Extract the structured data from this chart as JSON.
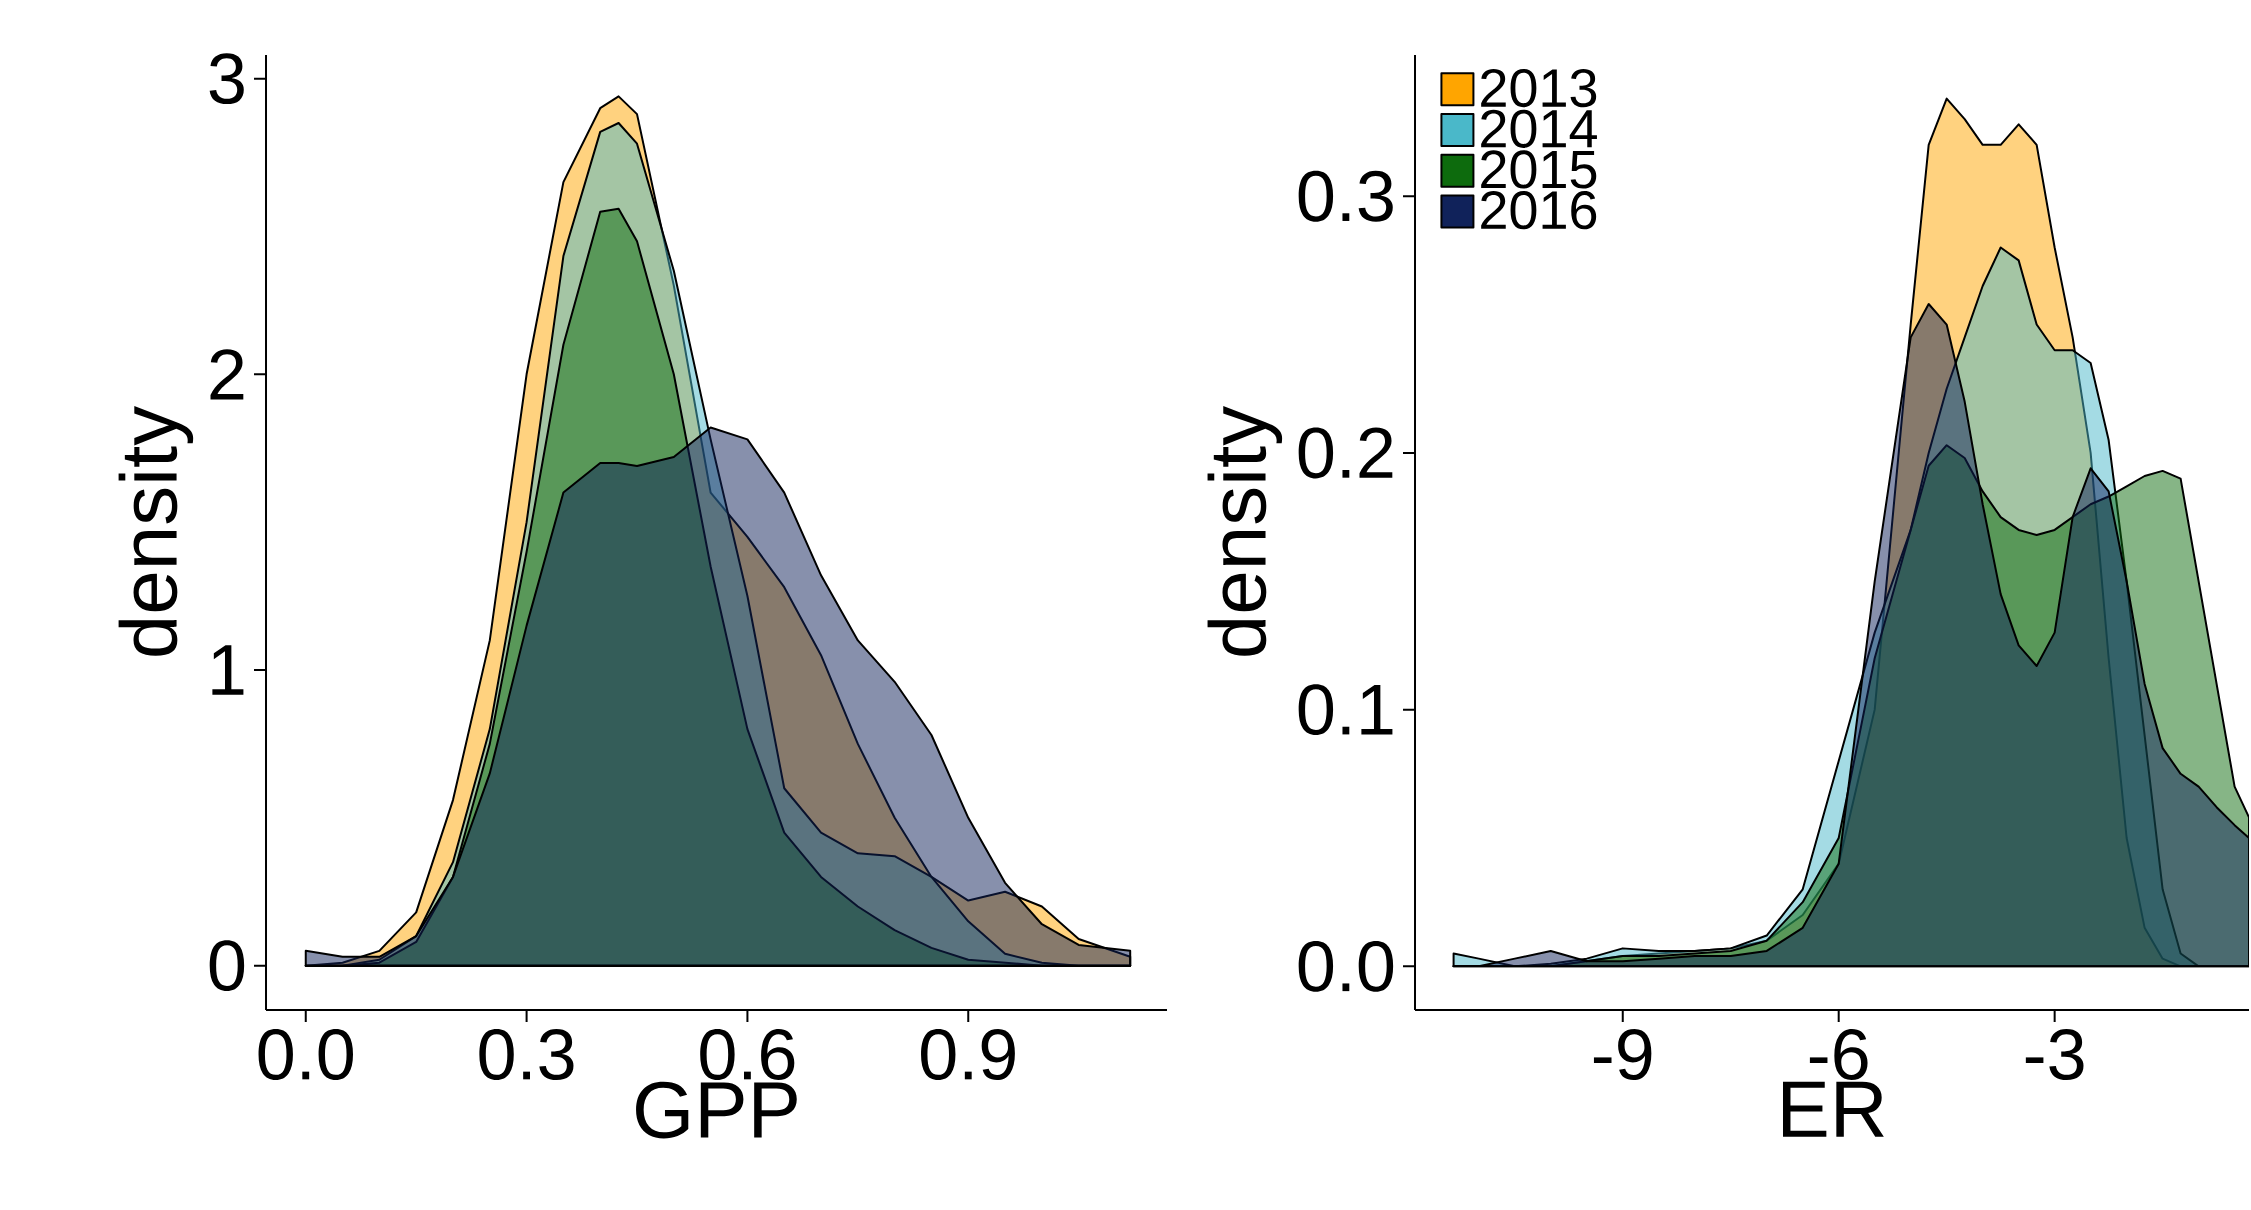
{
  "chart_data": [
    {
      "type": "area",
      "xlabel": "GPP",
      "ylabel": "density",
      "xlim": [
        -0.054,
        1.17
      ],
      "ylim": [
        -0.15,
        3.08
      ],
      "xticks": [
        {
          "value": 0,
          "label": "0.0"
        },
        0.3,
        0.6,
        0.9
      ],
      "yticks": [
        0,
        1,
        2,
        3
      ],
      "x": [
        0,
        0.05,
        0.1,
        0.15,
        0.2,
        0.25,
        0.3,
        0.35,
        0.4,
        0.425,
        0.45,
        0.5,
        0.55,
        0.6,
        0.65,
        0.7,
        0.75,
        0.8,
        0.85,
        0.9,
        0.95,
        1.0,
        1.05,
        1.12
      ],
      "series": [
        {
          "color": "#ffa500",
          "values": [
            0,
            0.01,
            0.05,
            0.18,
            0.56,
            1.1,
            2.0,
            2.65,
            2.9,
            2.94,
            2.88,
            2.3,
            1.6,
            1.45,
            1.28,
            1.05,
            0.75,
            0.5,
            0.3,
            0.22,
            0.25,
            0.2,
            0.09,
            0.03
          ]
        },
        {
          "color": "#4ab8c9",
          "values": [
            0,
            0,
            0.02,
            0.1,
            0.35,
            0.8,
            1.5,
            2.4,
            2.82,
            2.85,
            2.78,
            2.35,
            1.78,
            1.25,
            0.6,
            0.45,
            0.38,
            0.37,
            0.3,
            0.15,
            0.04,
            0.01,
            0,
            0
          ]
        },
        {
          "color": "#0d6b0d",
          "values": [
            0,
            0,
            0.01,
            0.08,
            0.3,
            0.75,
            1.4,
            2.1,
            2.55,
            2.56,
            2.45,
            2.0,
            1.35,
            0.8,
            0.45,
            0.3,
            0.2,
            0.12,
            0.06,
            0.02,
            0.01,
            0,
            0,
            0
          ]
        },
        {
          "color": "#10225a",
          "values": [
            0.05,
            0.03,
            0.03,
            0.1,
            0.3,
            0.65,
            1.15,
            1.6,
            1.7,
            1.7,
            1.69,
            1.72,
            1.82,
            1.78,
            1.6,
            1.32,
            1.1,
            0.96,
            0.78,
            0.5,
            0.28,
            0.14,
            0.07,
            0.05
          ]
        }
      ]
    },
    {
      "type": "area",
      "xlabel": "ER",
      "ylabel": "density",
      "xlim": [
        -11.886,
        -0.3
      ],
      "ylim": [
        -0.017,
        0.355
      ],
      "xticks": [
        -9,
        -6,
        -3
      ],
      "yticks": [
        {
          "value": 0,
          "label": "0.0"
        },
        0.1,
        0.2,
        0.3
      ],
      "legend": "top left",
      "x": [
        -11.35,
        -11,
        -10.5,
        -10,
        -9.5,
        -9,
        -8.5,
        -8,
        -7.5,
        -7,
        -6.5,
        -6,
        -5.5,
        -5,
        -4.75,
        -4.5,
        -4.25,
        -4,
        -3.75,
        -3.5,
        -3.25,
        -3,
        -2.75,
        -2.5,
        -2.25,
        -2,
        -1.75,
        -1.5,
        -1.25,
        -1,
        -0.75,
        -0.5,
        -0.3
      ],
      "series": [
        {
          "name": "2013",
          "color": "#ffa500",
          "values": [
            0,
            0,
            0,
            0,
            0.002,
            0.004,
            0.005,
            0.006,
            0.007,
            0.01,
            0.02,
            0.04,
            0.1,
            0.25,
            0.32,
            0.338,
            0.33,
            0.32,
            0.32,
            0.328,
            0.32,
            0.28,
            0.245,
            0.2,
            0.12,
            0.05,
            0.015,
            0.003,
            0,
            0,
            0,
            0,
            0
          ]
        },
        {
          "name": "2014",
          "color": "#4ab8c9",
          "values": [
            0.005,
            0.003,
            0,
            0.001,
            0.003,
            0.007,
            0.006,
            0.006,
            0.007,
            0.012,
            0.03,
            0.08,
            0.13,
            0.17,
            0.2,
            0.225,
            0.245,
            0.265,
            0.28,
            0.275,
            0.25,
            0.24,
            0.24,
            0.235,
            0.205,
            0.15,
            0.09,
            0.03,
            0.005,
            0,
            0,
            0,
            0
          ]
        },
        {
          "name": "2015",
          "color": "#0d6b0d",
          "values": [
            0,
            0,
            0,
            0,
            0.002,
            0.004,
            0.004,
            0.005,
            0.006,
            0.01,
            0.025,
            0.05,
            0.12,
            0.17,
            0.195,
            0.203,
            0.198,
            0.185,
            0.175,
            0.17,
            0.168,
            0.17,
            0.175,
            0.18,
            0.183,
            0.187,
            0.191,
            0.193,
            0.19,
            0.15,
            0.11,
            0.07,
            0.058
          ]
        },
        {
          "name": "2016",
          "color": "#10225a",
          "values": [
            0,
            0,
            0.003,
            0.006,
            0.002,
            0.002,
            0.003,
            0.004,
            0.004,
            0.006,
            0.015,
            0.04,
            0.15,
            0.245,
            0.258,
            0.25,
            0.22,
            0.18,
            0.145,
            0.125,
            0.117,
            0.13,
            0.175,
            0.194,
            0.185,
            0.15,
            0.11,
            0.085,
            0.075,
            0.07,
            0.062,
            0.055,
            0.05
          ]
        }
      ]
    }
  ]
}
